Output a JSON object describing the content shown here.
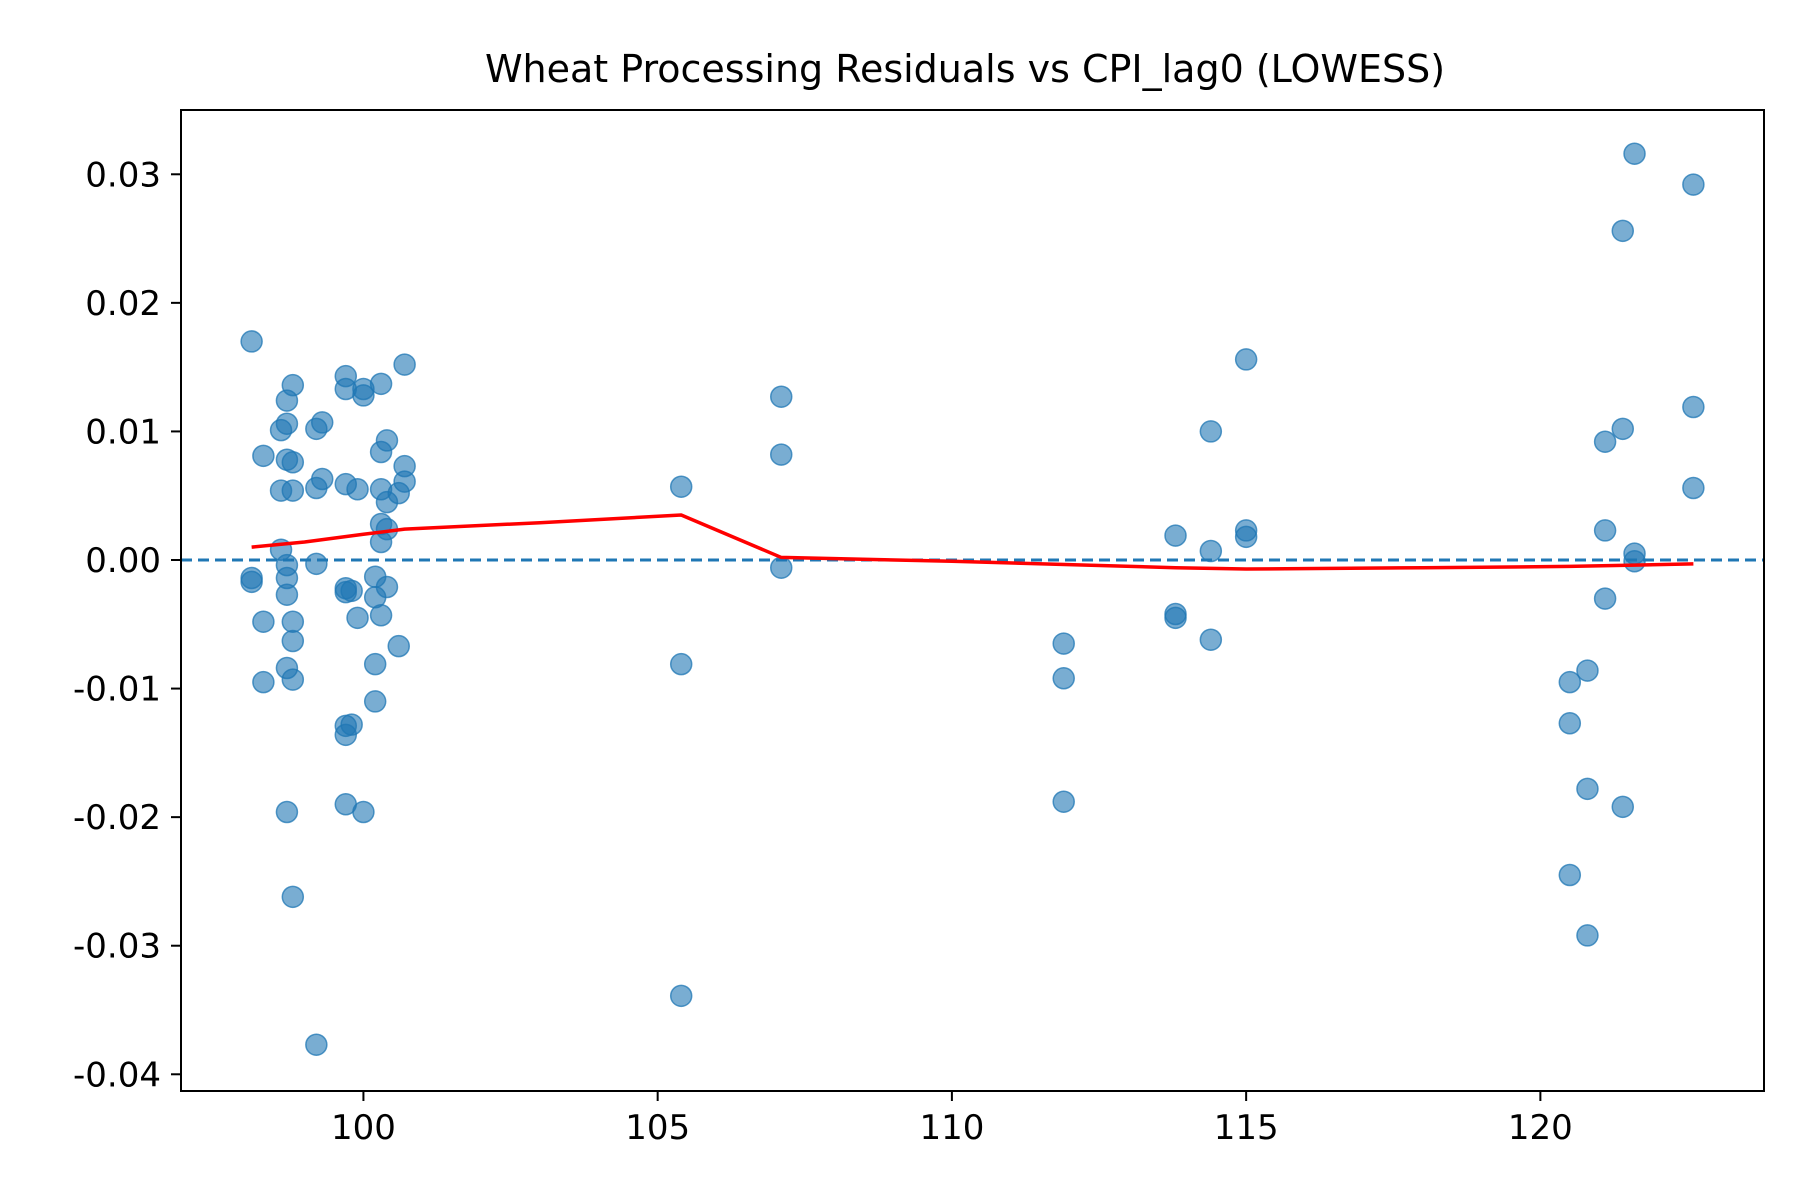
{
  "chart_data": {
    "type": "scatter",
    "title": "Wheat Processing Residuals vs CPI_lag0 (LOWESS)",
    "xlabel": "",
    "ylabel": "",
    "xlim": [
      96.9,
      123.8
    ],
    "ylim": [
      -0.0413,
      0.035
    ],
    "x_ticks": [
      100,
      105,
      110,
      115,
      120
    ],
    "x_tick_labels": [
      "100",
      "105",
      "110",
      "115",
      "120"
    ],
    "y_ticks": [
      0.03,
      0.02,
      0.01,
      0.0,
      -0.01,
      -0.02,
      -0.03,
      -0.04
    ],
    "y_tick_labels": [
      "0.03",
      "0.02",
      "0.01",
      "0.00",
      "-0.01",
      "-0.02",
      "-0.03",
      "-0.04"
    ],
    "grid": false,
    "reference_line": {
      "y": 0.0,
      "style": "dashed",
      "color": "#1f77b4"
    },
    "colors": {
      "points": "#1f77b4",
      "lowess": "#ff0000"
    },
    "series": [
      {
        "type": "scatter",
        "points": [
          [
            98.1,
            0.017
          ],
          [
            98.1,
            -0.0014
          ],
          [
            98.1,
            -0.0017
          ],
          [
            98.3,
            0.0081
          ],
          [
            98.3,
            -0.0048
          ],
          [
            98.3,
            -0.0095
          ],
          [
            98.6,
            0.0101
          ],
          [
            98.6,
            0.0054
          ],
          [
            98.6,
            0.0008
          ],
          [
            98.7,
            0.0124
          ],
          [
            98.7,
            0.0106
          ],
          [
            98.7,
            0.0078
          ],
          [
            98.7,
            -0.0004
          ],
          [
            98.7,
            -0.0014
          ],
          [
            98.7,
            -0.0027
          ],
          [
            98.7,
            -0.0084
          ],
          [
            98.7,
            -0.0196
          ],
          [
            98.8,
            0.0136
          ],
          [
            98.8,
            0.0076
          ],
          [
            98.8,
            0.0054
          ],
          [
            98.8,
            -0.0048
          ],
          [
            98.8,
            -0.0063
          ],
          [
            98.8,
            -0.0093
          ],
          [
            98.8,
            -0.0262
          ],
          [
            99.2,
            0.0102
          ],
          [
            99.2,
            0.0056
          ],
          [
            99.2,
            -0.0003
          ],
          [
            99.2,
            -0.0377
          ],
          [
            99.3,
            0.0107
          ],
          [
            99.3,
            0.0063
          ],
          [
            99.7,
            0.0143
          ],
          [
            99.7,
            0.0133
          ],
          [
            99.7,
            0.0059
          ],
          [
            99.7,
            -0.0022
          ],
          [
            99.7,
            -0.0025
          ],
          [
            99.7,
            -0.0129
          ],
          [
            99.7,
            -0.0136
          ],
          [
            99.7,
            -0.019
          ],
          [
            99.8,
            -0.0024
          ],
          [
            99.8,
            -0.0128
          ],
          [
            99.9,
            0.0055
          ],
          [
            99.9,
            -0.0045
          ],
          [
            100.0,
            0.0133
          ],
          [
            100.0,
            0.0128
          ],
          [
            100.0,
            -0.0196
          ],
          [
            100.2,
            -0.0013
          ],
          [
            100.2,
            -0.0029
          ],
          [
            100.2,
            -0.0081
          ],
          [
            100.2,
            -0.011
          ],
          [
            100.3,
            0.0137
          ],
          [
            100.3,
            0.0084
          ],
          [
            100.3,
            0.0055
          ],
          [
            100.3,
            0.0028
          ],
          [
            100.3,
            0.0014
          ],
          [
            100.3,
            -0.0043
          ],
          [
            100.4,
            0.0093
          ],
          [
            100.4,
            0.0045
          ],
          [
            100.4,
            0.0024
          ],
          [
            100.4,
            -0.0021
          ],
          [
            100.6,
            0.0052
          ],
          [
            100.6,
            -0.0067
          ],
          [
            100.7,
            0.0152
          ],
          [
            100.7,
            0.0073
          ],
          [
            100.7,
            0.0061
          ],
          [
            105.4,
            0.0057
          ],
          [
            105.4,
            -0.0081
          ],
          [
            105.4,
            -0.0339
          ],
          [
            107.1,
            0.0127
          ],
          [
            107.1,
            0.0082
          ],
          [
            107.1,
            -0.0006
          ],
          [
            111.9,
            -0.0065
          ],
          [
            111.9,
            -0.0092
          ],
          [
            111.9,
            -0.0188
          ],
          [
            113.8,
            0.0019
          ],
          [
            113.8,
            -0.0042
          ],
          [
            113.8,
            -0.0045
          ],
          [
            114.4,
            0.01
          ],
          [
            114.4,
            0.0007
          ],
          [
            114.4,
            -0.0062
          ],
          [
            115.0,
            0.0156
          ],
          [
            115.0,
            0.0023
          ],
          [
            115.0,
            0.0018
          ],
          [
            120.5,
            -0.0095
          ],
          [
            120.5,
            -0.0127
          ],
          [
            120.5,
            -0.0245
          ],
          [
            120.8,
            -0.0086
          ],
          [
            120.8,
            -0.0178
          ],
          [
            120.8,
            -0.0292
          ],
          [
            121.1,
            0.0092
          ],
          [
            121.1,
            0.0023
          ],
          [
            121.1,
            -0.003
          ],
          [
            121.4,
            0.0256
          ],
          [
            121.4,
            0.0102
          ],
          [
            121.4,
            -0.0192
          ],
          [
            121.6,
            0.0316
          ],
          [
            121.6,
            0.0005
          ],
          [
            121.6,
            -0.0001
          ],
          [
            122.6,
            0.0292
          ],
          [
            122.6,
            0.0119
          ],
          [
            122.6,
            0.0056
          ]
        ]
      },
      {
        "type": "line",
        "points": [
          [
            98.1,
            0.001
          ],
          [
            99.0,
            0.0014
          ],
          [
            100.0,
            0.002
          ],
          [
            100.7,
            0.0024
          ],
          [
            103.0,
            0.0029
          ],
          [
            105.4,
            0.0035
          ],
          [
            107.1,
            0.0002
          ],
          [
            110.0,
            -0.0001
          ],
          [
            113.8,
            -0.0006
          ],
          [
            115.0,
            -0.0007
          ],
          [
            118.0,
            -0.0006
          ],
          [
            120.5,
            -0.0005
          ],
          [
            121.6,
            -0.0004
          ],
          [
            122.6,
            -0.0003
          ]
        ]
      }
    ]
  }
}
